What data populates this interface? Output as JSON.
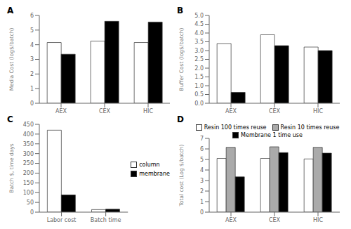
{
  "chart_data": [
    {
      "type": "bar",
      "title": "A",
      "ylabel": "Media Cost (log$/batch)",
      "categories": [
        "AEX",
        "CEX",
        "HIC"
      ],
      "series": [
        {
          "name": "column",
          "color": "white",
          "values": [
            4.15,
            4.25,
            4.15
          ]
        },
        {
          "name": "membrane",
          "color": "black",
          "values": [
            3.35,
            5.6,
            5.55
          ]
        }
      ],
      "ylim": [
        0,
        6
      ],
      "yticks": [
        0,
        1,
        2,
        3,
        4,
        5,
        6
      ],
      "grid": false
    },
    {
      "type": "bar",
      "title": "B",
      "ylabel": "Buffer Cost (log$/batch)",
      "categories": [
        "AEX",
        "CEX",
        "HIC"
      ],
      "series": [
        {
          "name": "column",
          "color": "white",
          "values": [
            3.4,
            3.9,
            3.2
          ]
        },
        {
          "name": "membrane",
          "color": "black",
          "values": [
            0.62,
            3.28,
            3.0
          ]
        }
      ],
      "ylim": [
        0,
        5
      ],
      "yticks": [
        {
          "value": 0,
          "label": "0.0"
        },
        0.5,
        {
          "value": 1,
          "label": "1.0"
        },
        1.5,
        {
          "value": 2,
          "label": "2.0"
        },
        2.5,
        {
          "value": 3,
          "label": "3.0"
        },
        3.5,
        {
          "value": 4,
          "label": "4.0"
        },
        4.5,
        {
          "value": 5,
          "label": "5.0"
        }
      ],
      "grid": false
    },
    {
      "type": "bar",
      "title": "C",
      "ylabel": "Batch $, time days",
      "categories": [
        "Labor cost",
        "Batch time"
      ],
      "series": [
        {
          "name": "column",
          "color": "white",
          "values": [
            420,
            13
          ]
        },
        {
          "name": "membrane",
          "color": "black",
          "values": [
            88,
            15
          ]
        }
      ],
      "ylim": [
        0,
        450
      ],
      "yticks": [
        0,
        50,
        100,
        150,
        200,
        250,
        300,
        350,
        400,
        450
      ],
      "grid": false,
      "legend": "right"
    },
    {
      "type": "bar",
      "title": "D",
      "ylabel": "Total cost (Log $/batch)",
      "categories": [
        "AEX",
        "CEX",
        "HIC"
      ],
      "series": [
        {
          "name": "Resin 100 times reuse",
          "color": "white",
          "values": [
            5.1,
            5.1,
            5.05
          ]
        },
        {
          "name": "Resin 10 times reuse",
          "color": "#aaaaaa",
          "values": [
            6.15,
            6.2,
            6.15
          ]
        },
        {
          "name": "Membrane 1 time use",
          "color": "black",
          "values": [
            3.35,
            5.65,
            5.6
          ]
        }
      ],
      "ylim": [
        0,
        7
      ],
      "yticks": [
        0,
        1,
        2,
        3,
        4,
        5,
        6,
        7
      ],
      "grid": false,
      "legend": "top"
    }
  ]
}
